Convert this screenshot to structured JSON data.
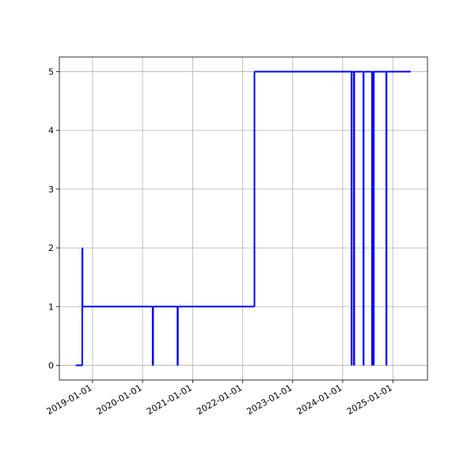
{
  "chart_data": {
    "type": "line",
    "step": "post",
    "x": [
      "2018-09-01",
      "2018-10-18",
      "2018-10-20",
      "2020-03-15",
      "2020-03-18",
      "2020-09-12",
      "2020-09-15",
      "2022-03-28",
      "2024-03-05",
      "2024-03-07",
      "2024-03-23",
      "2024-03-25",
      "2024-05-31",
      "2024-06-02",
      "2024-08-02",
      "2024-08-04",
      "2024-08-13",
      "2024-08-15",
      "2024-11-14",
      "2024-11-16",
      "2025-05-12"
    ],
    "values": [
      0,
      2,
      1,
      0,
      1,
      0,
      1,
      5,
      0,
      5,
      0,
      5,
      0,
      5,
      0,
      5,
      0,
      5,
      0,
      5,
      5
    ],
    "color": "#0000ff",
    "xlim": [
      "2018-05-04",
      "2025-09-11"
    ],
    "xticks": [
      "2019-01-01",
      "2020-01-01",
      "2021-01-01",
      "2022-01-01",
      "2023-01-01",
      "2024-01-01",
      "2025-01-01"
    ],
    "ylim": [
      -0.25,
      5.25
    ],
    "yticks": [
      0,
      1,
      2,
      3,
      4,
      5
    ],
    "grid": true
  }
}
